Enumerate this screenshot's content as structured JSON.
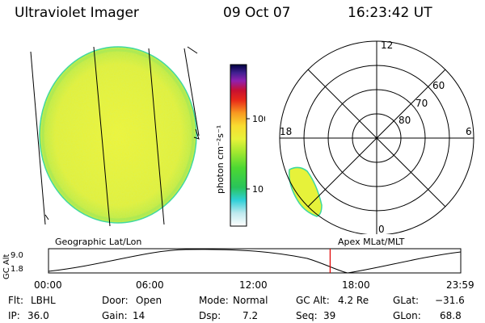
{
  "header": {
    "title": "Ultraviolet Imager",
    "date": "09 Oct 07",
    "time": "16:23:42 UT"
  },
  "colorbar": {
    "unit_label": "photon cm⁻²s⁻¹",
    "ticks": [
      "100",
      "10"
    ]
  },
  "polar_plot": {
    "mlt_labels": [
      "12",
      "18",
      "6",
      "0"
    ],
    "lat_labels": [
      "60",
      "70",
      "80"
    ]
  },
  "timeline": {
    "left_label": "Geographic Lat/Lon",
    "right_label": "Apex MLat/MLT",
    "axis_title": "GC Alt",
    "y_max": "9.0",
    "y_min": "1.8",
    "time_ticks": [
      "00:00",
      "06:00",
      "12:00",
      "18:00",
      "23:59"
    ],
    "marker_time_hours": 16.395
  },
  "status": {
    "filter_label": "Flt:",
    "filter_value": "LBHL",
    "ip_label": "IP:",
    "ip_value": "36.0",
    "door_label": "Door:",
    "door_value": "Open",
    "gain_label": "Gain:",
    "gain_value": "14",
    "mode_label": "Mode:",
    "mode_value": "Normal",
    "dsp_label": "Dsp:",
    "dsp_value": "7.2",
    "gcalt_label": "GC Alt:",
    "gcalt_value": "4.2 Re",
    "seq_label": "Seq:",
    "seq_value": "39",
    "glat_label": "GLat:",
    "glat_value": "−31.6",
    "glon_label": "GLon:",
    "glon_value": "68.8"
  },
  "colors": {
    "disk_fill": "#e6f23a",
    "disk_edge": "#38d8a0",
    "marker": "#e00000"
  }
}
